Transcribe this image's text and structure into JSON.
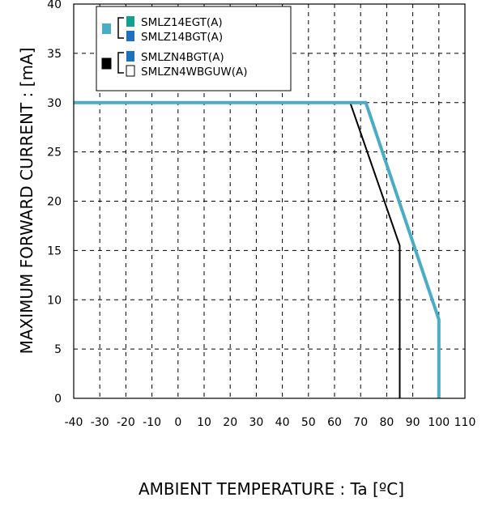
{
  "chart_data": {
    "type": "line",
    "xlabel": "AMBIENT TEMPERATURE : Ta [ºC]",
    "ylabel": "MAXIMUM FORWARD CURRENT :   [mA]",
    "xlim": [
      -40,
      110
    ],
    "ylim": [
      0,
      40
    ],
    "x_ticks": [
      -40,
      -30,
      -20,
      -10,
      0,
      10,
      20,
      30,
      40,
      50,
      60,
      70,
      80,
      90,
      100,
      110
    ],
    "y_ticks": [
      0,
      5,
      10,
      15,
      20,
      25,
      30,
      35,
      40
    ],
    "grid": "dashed",
    "legend_placement": "top-left",
    "legend_groups": [
      {
        "group_color": "#4bacc6",
        "entries": [
          {
            "label": "SMLZ14EGT(A)",
            "color": "#12a18f"
          },
          {
            "label": "SMLZ14BGT(A)",
            "color": "#1f6fbf"
          }
        ]
      },
      {
        "group_color": "#000000",
        "entries": [
          {
            "label": " SMLZN4BGT(A)",
            "color": "#1f6fbf"
          },
          {
            "label": "SMLZN4WBGUW(A)",
            "color": "#ffffff"
          }
        ]
      }
    ],
    "series": [
      {
        "color": "#4bacc6",
        "points": [
          [
            -40,
            30
          ],
          [
            72,
            30
          ],
          [
            100,
            8
          ],
          [
            100,
            0
          ]
        ]
      },
      {
        "color": "#000000",
        "points": [
          [
            -40,
            30
          ],
          [
            66,
            30
          ],
          [
            85,
            15.5
          ],
          [
            85,
            0
          ]
        ]
      }
    ]
  }
}
